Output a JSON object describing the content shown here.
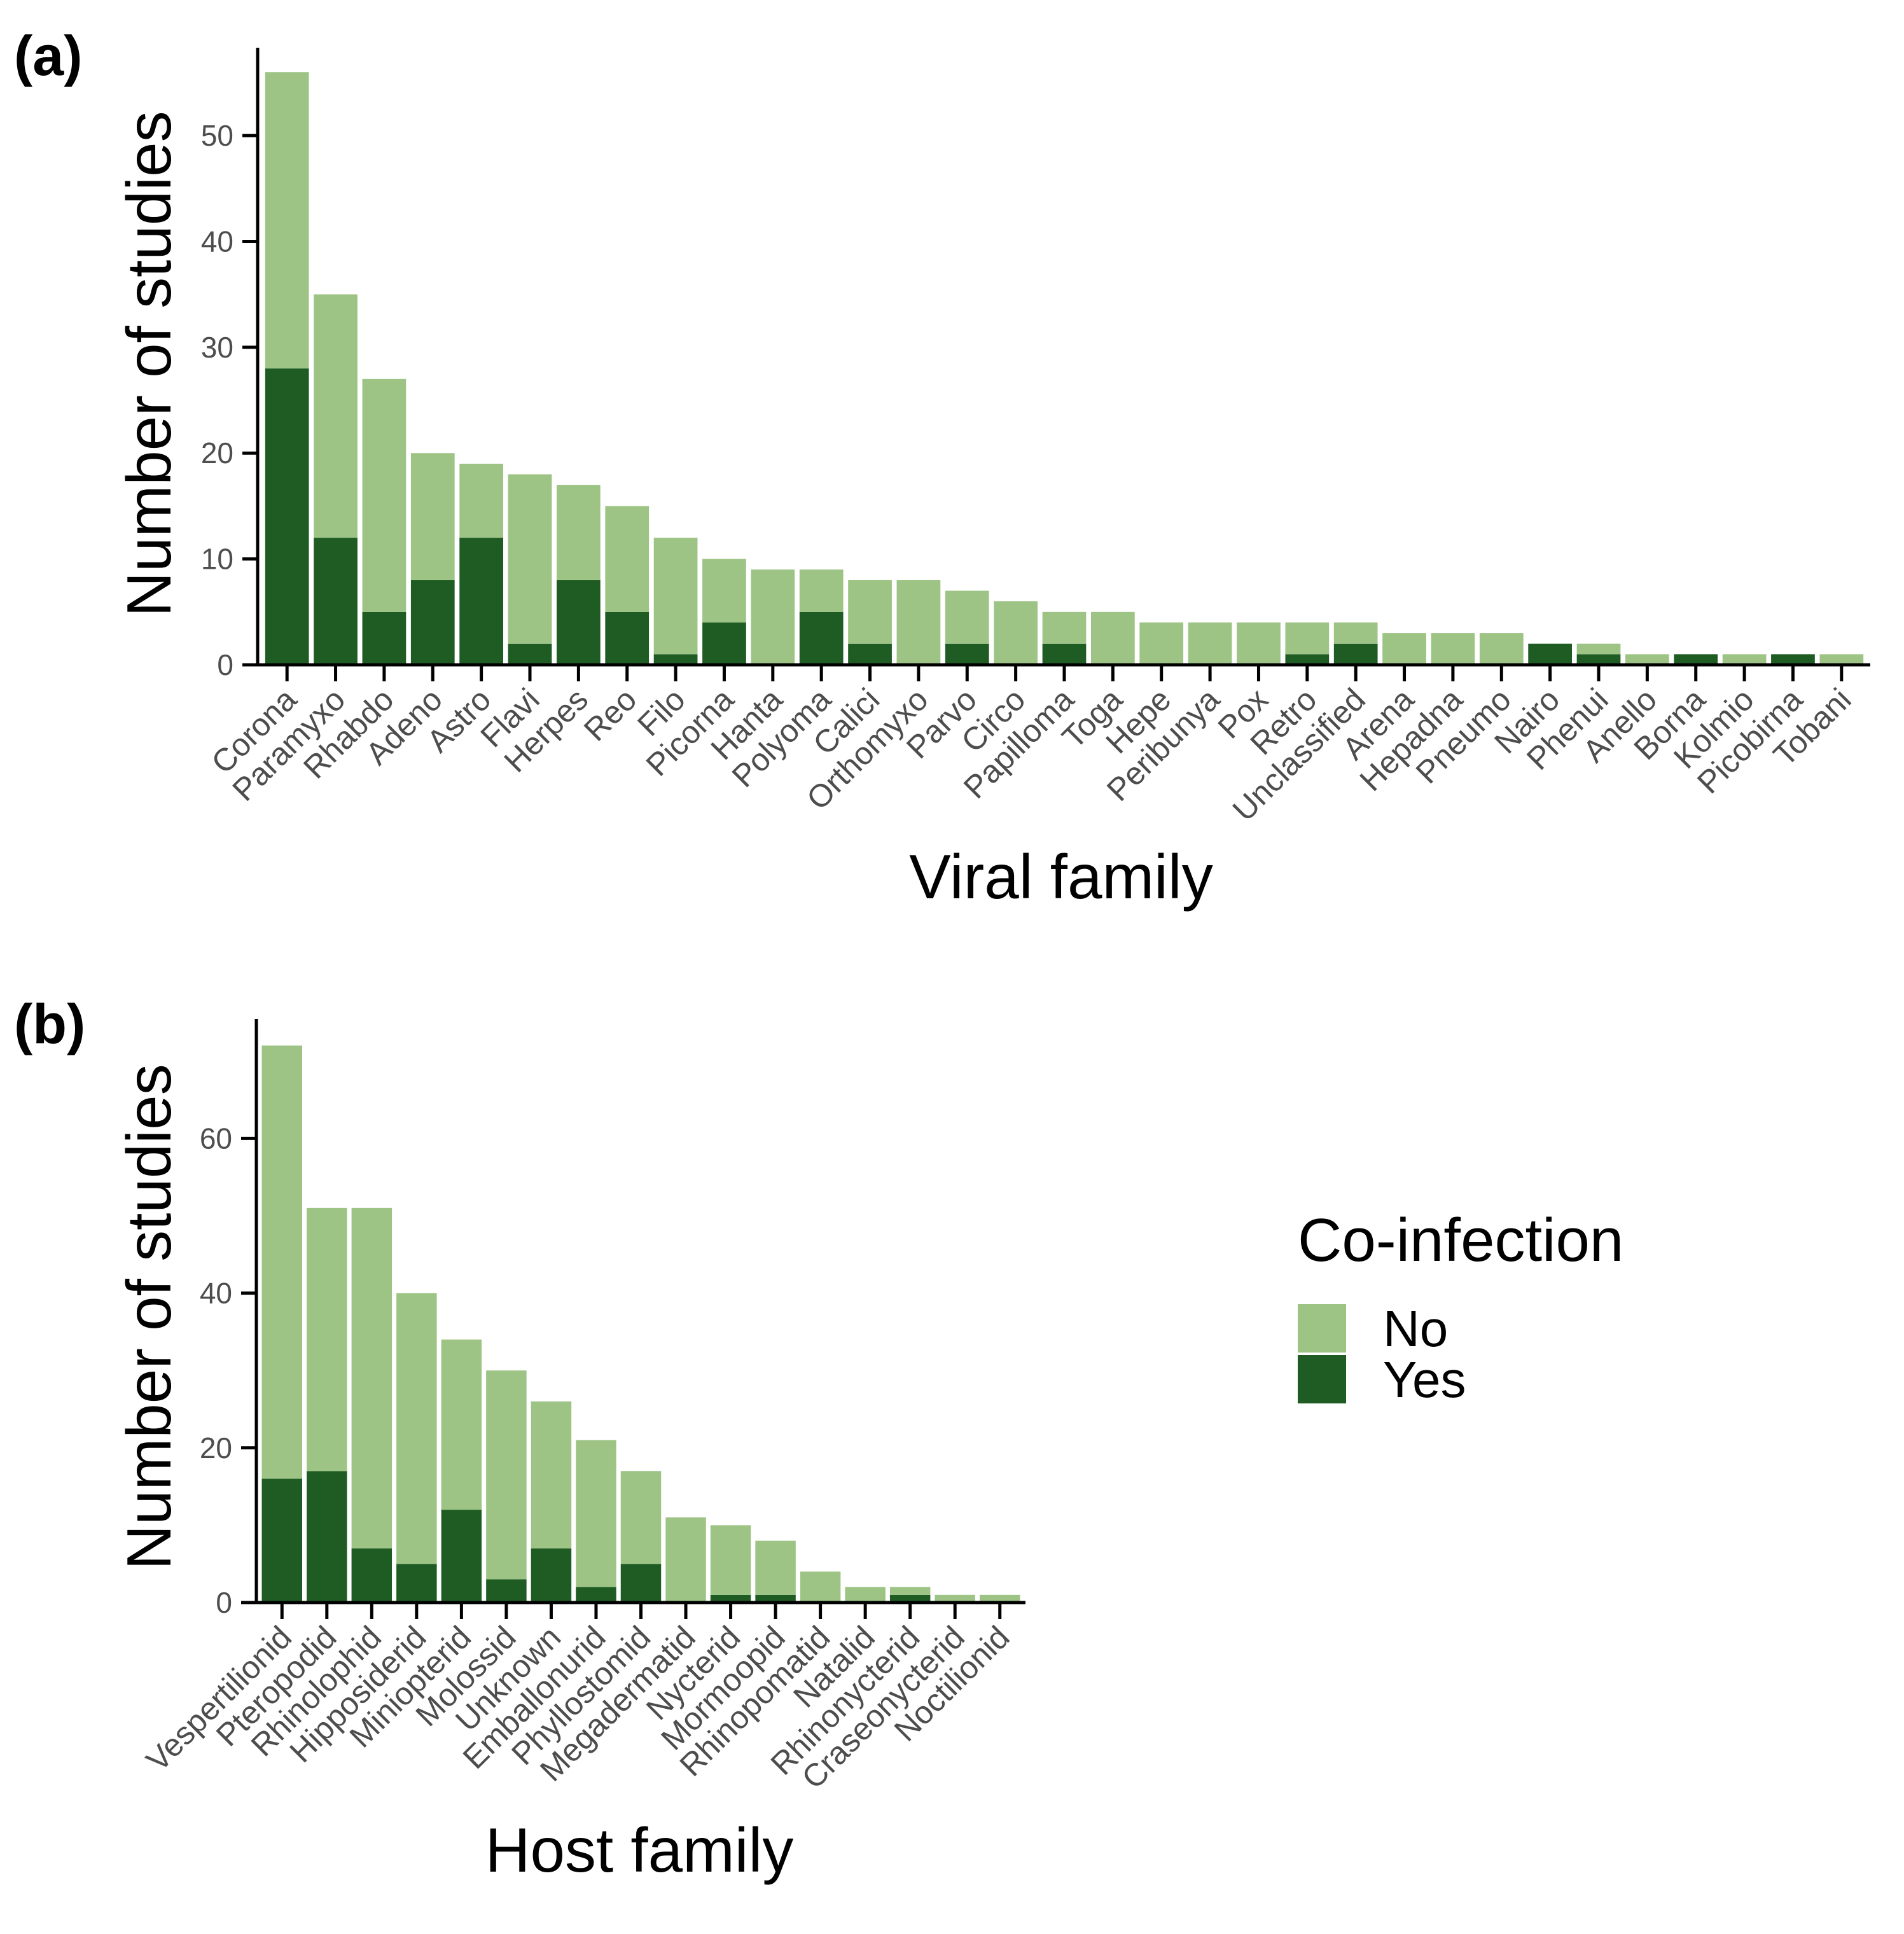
{
  "colors": {
    "no": "#9dc485",
    "yes": "#1f5c24",
    "axis": "#000000",
    "tick_text": "#4d4d4d"
  },
  "chart_data": [
    {
      "panel": "(a)",
      "type": "bar",
      "stacked": true,
      "xlabel": "Viral family",
      "ylabel": "Number of studies",
      "ylim": [
        0,
        58
      ],
      "yticks": [
        0,
        10,
        20,
        30,
        40,
        50
      ],
      "categories": [
        "Corona",
        "Paramyxo",
        "Rhabdo",
        "Adeno",
        "Astro",
        "Flavi",
        "Herpes",
        "Reo",
        "Filo",
        "Picorna",
        "Hanta",
        "Polyoma",
        "Calici",
        "Orthomyxo",
        "Parvo",
        "Circo",
        "Papilloma",
        "Toga",
        "Hepe",
        "Peribunya",
        "Pox",
        "Retro",
        "Unclassified",
        "Arena",
        "Hepadna",
        "Pneumo",
        "Nairo",
        "Phenui",
        "Anello",
        "Borna",
        "Kolmio",
        "Picobirna",
        "Tobani"
      ],
      "series": [
        {
          "name": "Yes",
          "values": [
            28,
            12,
            5,
            8,
            12,
            2,
            8,
            5,
            1,
            4,
            0,
            5,
            2,
            0,
            2,
            0,
            2,
            0,
            0,
            0,
            0,
            1,
            2,
            0,
            0,
            0,
            2,
            1,
            0,
            1,
            0,
            1,
            0
          ]
        },
        {
          "name": "No",
          "values": [
            28,
            23,
            22,
            12,
            7,
            16,
            9,
            10,
            11,
            6,
            9,
            4,
            6,
            8,
            5,
            6,
            3,
            5,
            4,
            4,
            4,
            3,
            2,
            3,
            3,
            3,
            0,
            1,
            1,
            0,
            1,
            0,
            1
          ]
        }
      ]
    },
    {
      "panel": "(b)",
      "type": "bar",
      "stacked": true,
      "xlabel": "Host family",
      "ylabel": "Number of studies",
      "ylim": [
        0,
        75
      ],
      "yticks": [
        0,
        20,
        40,
        60
      ],
      "categories": [
        "Vespertilionid",
        "Pteropodid",
        "Rhinolophid",
        "Hipposiderid",
        "Miniopterid",
        "Molossid",
        "Unknown",
        "Emballonurid",
        "Phyllostomid",
        "Megadermatid",
        "Nycterid",
        "Mormoopid",
        "Rhinopomatid",
        "Natalid",
        "Rhinonycterid",
        "Craseonycterid",
        "Noctilionid"
      ],
      "series": [
        {
          "name": "Yes",
          "values": [
            16,
            17,
            7,
            5,
            12,
            3,
            7,
            2,
            5,
            0,
            1,
            1,
            0,
            0,
            1,
            0,
            0
          ]
        },
        {
          "name": "No",
          "values": [
            56,
            34,
            44,
            35,
            22,
            27,
            19,
            19,
            12,
            11,
            9,
            7,
            4,
            2,
            1,
            1,
            1
          ]
        }
      ]
    }
  ],
  "legend": {
    "title": "Co-infection",
    "items": [
      {
        "label": "No",
        "color": "#9dc485"
      },
      {
        "label": "Yes",
        "color": "#1f5c24"
      }
    ]
  }
}
